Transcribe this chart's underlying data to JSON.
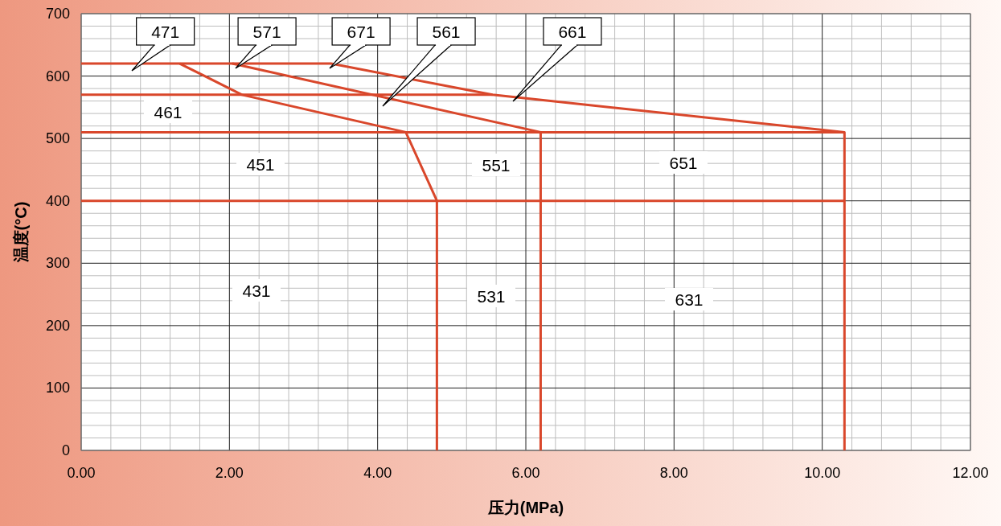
{
  "chart_data": {
    "type": "line",
    "xlabel": "压力(MPa)",
    "ylabel": "温度(°C)",
    "xlim": [
      0,
      12
    ],
    "ylim": [
      0,
      700
    ],
    "xticks": [
      {
        "value": 0,
        "label": "0.00"
      },
      {
        "value": 2,
        "label": "2.00"
      },
      {
        "value": 4,
        "label": "4.00"
      },
      {
        "value": 6,
        "label": "6.00"
      },
      {
        "value": 8,
        "label": "8.00"
      },
      {
        "value": 10,
        "label": "10.00"
      },
      {
        "value": 12,
        "label": "12.00"
      }
    ],
    "yticks": [
      0,
      100,
      200,
      300,
      400,
      500,
      600,
      700
    ],
    "grid": true,
    "marker": "none",
    "line_style": "solid",
    "series": [
      {
        "color": "#d9472b",
        "x": [
          0,
          3.37,
          5.55,
          10.3,
          10.3
        ],
        "values": [
          620,
          620,
          570,
          510,
          0
        ]
      },
      {
        "color": "#d9472b",
        "x": [
          0,
          5.55
        ],
        "values": [
          570,
          570
        ]
      },
      {
        "color": "#d9472b",
        "x": [
          0,
          10.3
        ],
        "values": [
          510,
          510
        ]
      },
      {
        "color": "#d9472b",
        "x": [
          0,
          10.3
        ],
        "values": [
          400,
          400
        ]
      },
      {
        "color": "#d9472b",
        "x": [
          1.33,
          2.17,
          4.38,
          4.8,
          4.8
        ],
        "values": [
          620,
          570,
          510,
          400,
          0
        ]
      },
      {
        "color": "#d9472b",
        "x": [
          2.04,
          6.2,
          6.2
        ],
        "values": [
          620,
          510,
          0
        ]
      }
    ],
    "annotations": [
      "471",
      "571",
      "671",
      "561",
      "661",
      "461",
      "451",
      "551",
      "651",
      "431",
      "531",
      "631"
    ]
  }
}
